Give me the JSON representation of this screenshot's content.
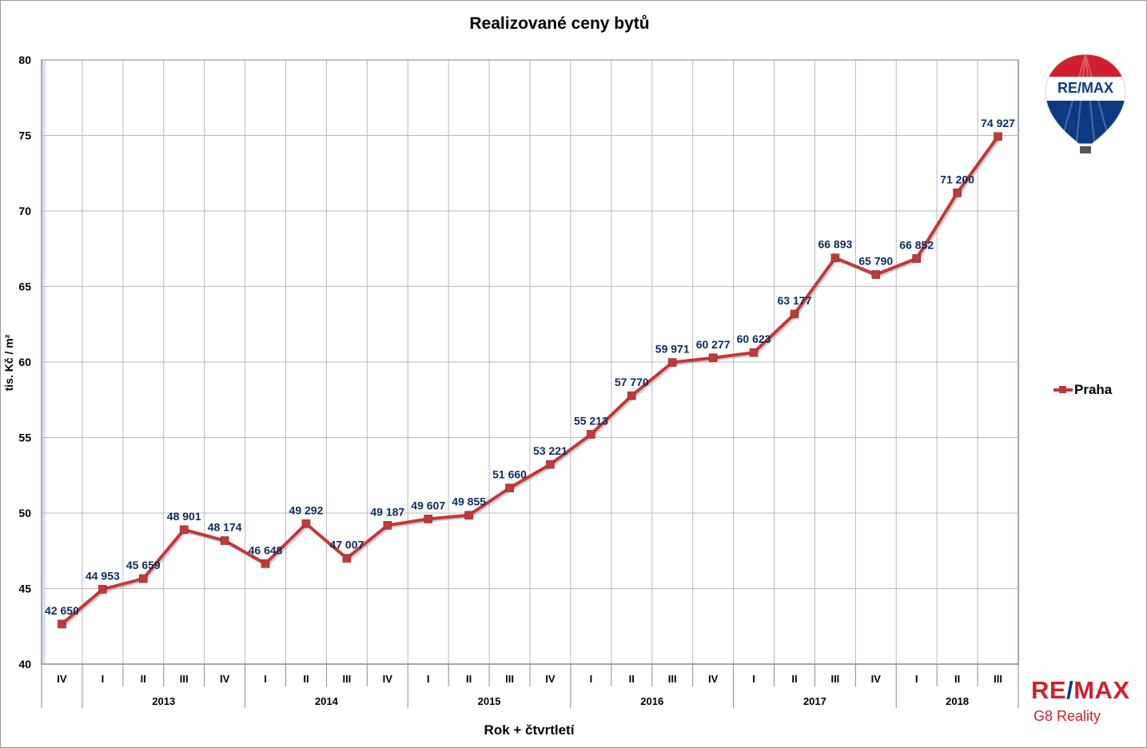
{
  "chart_data": {
    "type": "line",
    "title": "Realizované ceny bytů",
    "xlabel": "Rok + čtvrtletí",
    "ylabel": "tis. Kč / m²",
    "ylim": [
      40,
      80
    ],
    "yticks": [
      40,
      45,
      50,
      55,
      60,
      65,
      70,
      75,
      80
    ],
    "grid": true,
    "legend_position": "right",
    "quarters": [
      "IV",
      "I",
      "II",
      "III",
      "IV",
      "I",
      "II",
      "III",
      "IV",
      "I",
      "II",
      "III",
      "IV",
      "I",
      "II",
      "III",
      "IV",
      "I",
      "II",
      "III",
      "IV",
      "I",
      "II",
      "III"
    ],
    "years": [
      {
        "label": "",
        "span": 1
      },
      {
        "label": "2013",
        "span": 4
      },
      {
        "label": "2014",
        "span": 4
      },
      {
        "label": "2015",
        "span": 4
      },
      {
        "label": "2016",
        "span": 4
      },
      {
        "label": "2017",
        "span": 4
      },
      {
        "label": "2018",
        "span": 3
      }
    ],
    "series": [
      {
        "name": "Praha",
        "color": "#c0393b",
        "values": [
          42.65,
          44.953,
          45.659,
          48.901,
          48.174,
          46.648,
          49.292,
          47.007,
          49.187,
          49.607,
          49.855,
          51.66,
          53.221,
          55.213,
          57.77,
          59.971,
          60.277,
          60.623,
          63.177,
          66.893,
          65.79,
          66.852,
          71.2,
          74.927
        ],
        "labels": [
          "42 650",
          "44 953",
          "45 659",
          "48 901",
          "48 174",
          "46 648",
          "49 292",
          "47 007",
          "49 187",
          "49 607",
          "49 855",
          "51 660",
          "53 221",
          "55 213",
          "57 770",
          "59 971",
          "60 277",
          "60 623",
          "63 177",
          "66 893",
          "65 790",
          "66 852",
          "71 200",
          "74 927"
        ]
      }
    ]
  },
  "logo": {
    "balloon_text": "RE/MAX",
    "brand_left": "RE",
    "brand_slash": "/",
    "brand_right": "MAX",
    "brand_sub": "G8 Reality",
    "colors": {
      "red": "#d0202e",
      "blue": "#0b3a82"
    }
  },
  "colors": {
    "label": "#0d2a5e",
    "grid": "#b8b8b8",
    "axis": "#8a8a8a"
  }
}
